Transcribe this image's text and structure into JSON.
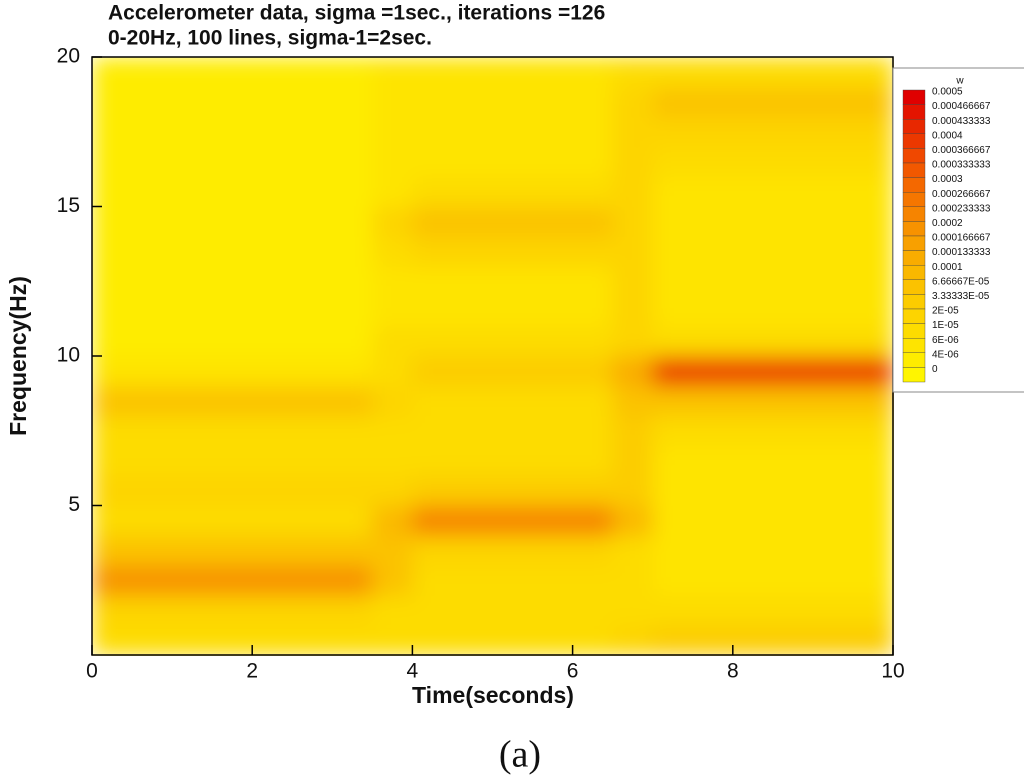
{
  "chart_data": {
    "type": "heatmap",
    "title": "Accelerometer data, sigma =1sec., iterations =126",
    "subtitle": "0-20Hz, 100 lines, sigma-1=2sec.",
    "xlabel": "Time(seconds)",
    "ylabel": "Frequency(Hz)",
    "xlim": [
      0,
      10
    ],
    "ylim": [
      0,
      20
    ],
    "xticks": [
      0,
      2,
      4,
      6,
      8,
      10
    ],
    "yticks": [
      5,
      10,
      15,
      20
    ],
    "x": [
      0,
      0.5,
      1,
      1.5,
      2,
      2.5,
      3,
      3.5,
      4,
      4.5,
      5,
      5.5,
      6,
      6.5,
      7,
      7.5,
      8,
      8.5,
      9,
      9.5,
      10
    ],
    "y": [
      0,
      1,
      2,
      3,
      4,
      5,
      6,
      7,
      8,
      9,
      10,
      11,
      12,
      13,
      14,
      15,
      16,
      17,
      18,
      19,
      20
    ],
    "z": [
      [
        1e-05,
        1e-05,
        1e-05,
        1e-05,
        1e-05,
        1e-05,
        1e-05,
        1e-05,
        1e-05,
        1e-05,
        1e-05,
        1e-05,
        1e-05,
        2e-05,
        3.5e-05,
        3.5e-05,
        3.5e-05,
        3.5e-05,
        3.5e-05,
        3.5e-05
      ],
      [
        2e-05,
        2e-05,
        2e-05,
        2e-05,
        2e-05,
        2e-05,
        2e-05,
        1e-05,
        1e-05,
        1e-05,
        1e-05,
        1e-05,
        1e-05,
        1e-05,
        1e-05,
        1e-05,
        1e-05,
        1e-05,
        1e-05,
        1e-05
      ],
      [
        0.0002,
        0.0002,
        0.0002,
        0.0002,
        0.0002,
        0.0002,
        0.0002,
        7e-05,
        1e-05,
        1e-05,
        1e-05,
        1e-05,
        1e-05,
        1e-05,
        6e-06,
        6e-06,
        6e-06,
        6e-06,
        6e-06,
        6e-06
      ],
      [
        7e-05,
        7e-05,
        7e-05,
        7e-05,
        7e-05,
        7e-05,
        7e-05,
        7e-05,
        2e-05,
        2e-05,
        2e-05,
        2e-05,
        2e-05,
        1e-05,
        6e-06,
        6e-06,
        6e-06,
        6e-06,
        6e-06,
        6e-06
      ],
      [
        1e-05,
        1e-05,
        1e-05,
        1e-05,
        1e-05,
        1e-05,
        1e-05,
        0.00012,
        0.00025,
        0.00025,
        0.00025,
        0.00025,
        0.00025,
        0.00012,
        6e-06,
        6e-06,
        6e-06,
        6e-06,
        6e-06,
        6e-06
      ],
      [
        2e-05,
        2e-05,
        2e-05,
        2e-05,
        2e-05,
        2e-05,
        2e-05,
        2e-05,
        3.5e-05,
        3.5e-05,
        3.5e-05,
        3.5e-05,
        3.5e-05,
        3.5e-05,
        6e-06,
        6e-06,
        6e-06,
        6e-06,
        6e-06,
        6e-06
      ],
      [
        1e-05,
        1e-05,
        1e-05,
        1e-05,
        1e-05,
        1e-05,
        1e-05,
        1e-05,
        1e-05,
        1e-05,
        1e-05,
        1e-05,
        1e-05,
        3.5e-05,
        6e-06,
        6e-06,
        6e-06,
        6e-06,
        6e-06,
        6e-06
      ],
      [
        1e-05,
        1e-05,
        1e-05,
        1e-05,
        1e-05,
        1e-05,
        1e-05,
        1e-05,
        1e-05,
        1e-05,
        1e-05,
        1e-05,
        1e-05,
        3.5e-05,
        1e-05,
        1e-05,
        1e-05,
        1e-05,
        1e-05,
        1e-05
      ],
      [
        7e-05,
        7e-05,
        7e-05,
        7e-05,
        7e-05,
        7e-05,
        7e-05,
        2e-05,
        1e-05,
        1e-05,
        1e-05,
        1e-05,
        1e-05,
        7e-05,
        7e-05,
        7e-05,
        7e-05,
        7e-05,
        7e-05,
        7e-05
      ],
      [
        6e-06,
        6e-06,
        6e-06,
        6e-06,
        6e-06,
        6e-06,
        6e-06,
        1e-05,
        3.5e-05,
        3.5e-05,
        3.5e-05,
        3.5e-05,
        3.5e-05,
        0.00015,
        0.0004,
        0.0004,
        0.0004,
        0.0004,
        0.0004,
        0.0004
      ],
      [
        4e-06,
        4e-06,
        4e-06,
        4e-06,
        4e-06,
        4e-06,
        4e-06,
        1e-05,
        1e-05,
        1e-05,
        1e-05,
        1e-05,
        1e-05,
        2e-05,
        1e-05,
        1e-05,
        1e-05,
        1e-05,
        1e-05,
        1e-05
      ],
      [
        4e-06,
        4e-06,
        4e-06,
        4e-06,
        4e-06,
        4e-06,
        4e-06,
        6e-06,
        6e-06,
        6e-06,
        6e-06,
        6e-06,
        6e-06,
        2e-05,
        6e-06,
        6e-06,
        6e-06,
        6e-06,
        6e-06,
        6e-06
      ],
      [
        4e-06,
        4e-06,
        4e-06,
        4e-06,
        4e-06,
        4e-06,
        4e-06,
        6e-06,
        6e-06,
        6e-06,
        6e-06,
        6e-06,
        6e-06,
        2e-05,
        6e-06,
        6e-06,
        6e-06,
        6e-06,
        6e-06,
        6e-06
      ],
      [
        4e-06,
        4e-06,
        4e-06,
        4e-06,
        4e-06,
        4e-06,
        4e-06,
        1e-05,
        2e-05,
        2e-05,
        2e-05,
        2e-05,
        2e-05,
        2e-05,
        6e-06,
        6e-06,
        6e-06,
        6e-06,
        6e-06,
        6e-06
      ],
      [
        4e-06,
        4e-06,
        4e-06,
        4e-06,
        4e-06,
        4e-06,
        4e-06,
        2e-05,
        7e-05,
        7e-05,
        7e-05,
        7e-05,
        7e-05,
        2e-05,
        6e-06,
        6e-06,
        6e-06,
        6e-06,
        6e-06,
        6e-06
      ],
      [
        4e-06,
        4e-06,
        4e-06,
        4e-06,
        4e-06,
        4e-06,
        4e-06,
        6e-06,
        1e-05,
        1e-05,
        1e-05,
        1e-05,
        1e-05,
        2e-05,
        6e-06,
        6e-06,
        6e-06,
        6e-06,
        6e-06,
        6e-06
      ],
      [
        4e-06,
        4e-06,
        4e-06,
        4e-06,
        4e-06,
        4e-06,
        4e-06,
        6e-06,
        6e-06,
        6e-06,
        6e-06,
        6e-06,
        6e-06,
        2e-05,
        1e-05,
        1e-05,
        1e-05,
        1e-05,
        1e-05,
        1e-05
      ],
      [
        4e-06,
        4e-06,
        4e-06,
        4e-06,
        4e-06,
        4e-06,
        4e-06,
        6e-06,
        6e-06,
        6e-06,
        6e-06,
        6e-06,
        6e-06,
        2e-05,
        2e-05,
        2e-05,
        2e-05,
        2e-05,
        2e-05,
        2e-05
      ],
      [
        4e-06,
        4e-06,
        4e-06,
        4e-06,
        4e-06,
        4e-06,
        4e-06,
        6e-06,
        6e-06,
        6e-06,
        6e-06,
        6e-06,
        6e-06,
        2e-05,
        7e-05,
        7e-05,
        7e-05,
        7e-05,
        7e-05,
        7e-05
      ],
      [
        4e-06,
        4e-06,
        4e-06,
        4e-06,
        4e-06,
        4e-06,
        4e-06,
        6e-06,
        6e-06,
        6e-06,
        6e-06,
        6e-06,
        6e-06,
        1e-05,
        1e-05,
        1e-05,
        1e-05,
        1e-05,
        1e-05,
        1e-05
      ]
    ],
    "legend": {
      "title": "w",
      "levels": [
        0.0005,
        0.000466667,
        0.000433333,
        0.0004,
        0.000366667,
        0.000333333,
        0.0003,
        0.000266667,
        0.000233333,
        0.0002,
        0.000166667,
        0.000133333,
        0.0001,
        {
          "value": 6.66667e-05,
          "label": "6.66667E-05"
        },
        {
          "value": 3.33333e-05,
          "label": "3.33333E-05"
        },
        {
          "value": 2e-05,
          "label": "2E-05"
        },
        {
          "value": 1e-05,
          "label": "1E-05"
        },
        {
          "value": 6e-06,
          "label": "6E-06"
        },
        {
          "value": 4e-06,
          "label": "4E-06"
        },
        0
      ],
      "colors": [
        "#e00000",
        "#e41400",
        "#e82800",
        "#ec3800",
        "#f04800",
        "#f25800",
        "#f46800",
        "#f57600",
        "#f68400",
        "#f79200",
        "#f8a000",
        "#f9ac00",
        "#fab800",
        "#fbc200",
        "#fccc00",
        "#fdd400",
        "#fddc00",
        "#fee400",
        "#feec00",
        "#fff500"
      ]
    }
  },
  "caption": "(a)"
}
